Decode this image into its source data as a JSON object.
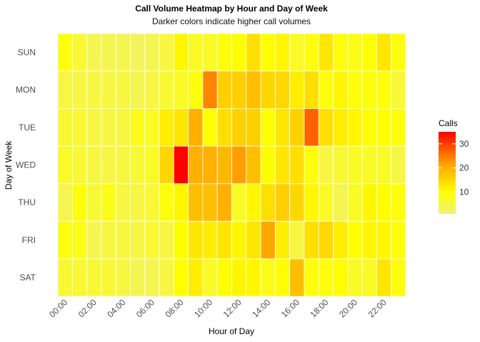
{
  "chart_data": {
    "type": "heatmap",
    "title": "Call Volume Heatmap by Hour and Day of Week",
    "subtitle": "Darker colors indicate higher call volumes",
    "xlabel": "Hour of Day",
    "ylabel": "Day of Week",
    "x_ticks": [
      "00:00",
      "02:00",
      "04:00",
      "06:00",
      "08:00",
      "10:00",
      "12:00",
      "14:00",
      "16:00",
      "18:00",
      "20:00",
      "22:00"
    ],
    "x_hours": [
      0,
      1,
      2,
      3,
      4,
      5,
      6,
      7,
      8,
      9,
      10,
      11,
      12,
      13,
      14,
      15,
      16,
      17,
      18,
      19,
      20,
      21,
      22,
      23
    ],
    "days": [
      "SUN",
      "MON",
      "TUE",
      "WED",
      "THU",
      "FRI",
      "SAT"
    ],
    "legend": {
      "title": "Calls",
      "ticks": [
        10,
        20,
        30
      ],
      "min": 1,
      "max": 35
    },
    "color_scale": [
      "#f0f07a",
      "#ffff00",
      "#ffa500",
      "#ff0000"
    ],
    "values": [
      [
        9,
        6,
        4,
        4,
        4,
        3,
        4,
        5,
        11,
        7,
        7,
        9,
        10,
        14,
        10,
        11,
        7,
        9,
        13,
        9,
        8,
        10,
        13,
        9
      ],
      [
        5,
        5,
        5,
        5,
        5,
        4,
        5,
        6,
        7,
        9,
        24,
        16,
        16,
        18,
        15,
        15,
        12,
        14,
        9,
        11,
        9,
        9,
        9,
        6
      ],
      [
        6,
        6,
        5,
        5,
        5,
        8,
        7,
        12,
        13,
        20,
        10,
        14,
        16,
        16,
        10,
        13,
        16,
        27,
        14,
        12,
        11,
        10,
        10,
        9
      ],
      [
        7,
        6,
        5,
        5,
        5,
        6,
        7,
        15,
        35,
        20,
        20,
        19,
        22,
        18,
        10,
        13,
        14,
        9,
        5,
        6,
        7,
        7,
        7,
        5
      ],
      [
        4,
        9,
        6,
        8,
        5,
        5,
        6,
        9,
        11,
        18,
        18,
        20,
        7,
        11,
        14,
        16,
        15,
        11,
        7,
        4,
        7,
        11,
        10,
        9
      ],
      [
        9,
        8,
        4,
        5,
        5,
        5,
        6,
        5,
        10,
        13,
        12,
        13,
        11,
        13,
        21,
        12,
        5,
        14,
        15,
        12,
        10,
        11,
        11,
        9
      ],
      [
        6,
        6,
        6,
        6,
        5,
        4,
        4,
        5,
        10,
        12,
        7,
        10,
        11,
        11,
        8,
        10,
        18,
        9,
        9,
        10,
        7,
        7,
        13,
        9
      ]
    ]
  }
}
